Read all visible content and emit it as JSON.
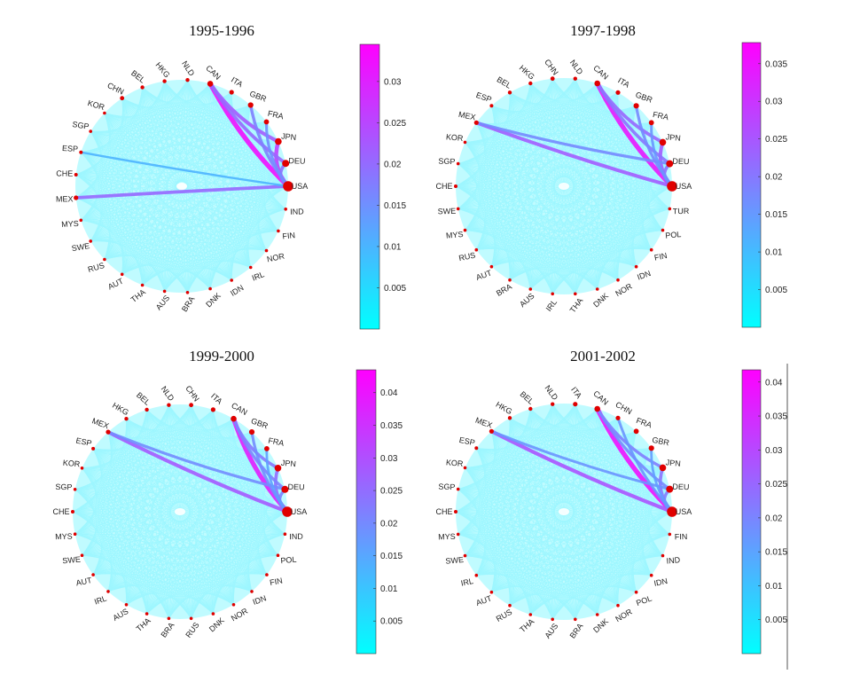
{
  "colors": {
    "low": "#00ffff",
    "high": "#ff00ff",
    "node": "#e00000",
    "background_web": "#4ff0ff"
  },
  "panels": [
    {
      "title": "1995-1996",
      "nodes": [
        "USA",
        "IND",
        "FIN",
        "NOR",
        "IRL",
        "IDN",
        "DNK",
        "BRA",
        "AUS",
        "THA",
        "AUT",
        "RUS",
        "SWE",
        "MYS",
        "MEX",
        "CHE",
        "ESP",
        "SGP",
        "KOR",
        "CHN",
        "BEL",
        "HKG",
        "NLD",
        "CAN",
        "ITA",
        "GBR",
        "FRA",
        "JPN",
        "DEU"
      ],
      "node_strength": [
        1,
        0.1,
        0.1,
        0.1,
        0.1,
        0.1,
        0.1,
        0.1,
        0.1,
        0.1,
        0.1,
        0.1,
        0.1,
        0.1,
        0.3,
        0.15,
        0.15,
        0.1,
        0.1,
        0.25,
        0.2,
        0.2,
        0.2,
        0.45,
        0.3,
        0.4,
        0.35,
        0.55,
        0.6
      ],
      "strong_edges": [
        {
          "from": "USA",
          "to": "CAN",
          "weight": 0.034
        },
        {
          "from": "USA",
          "to": "MEX",
          "weight": 0.02
        },
        {
          "from": "USA",
          "to": "JPN",
          "weight": 0.026
        },
        {
          "from": "USA",
          "to": "DEU",
          "weight": 0.018
        },
        {
          "from": "CAN",
          "to": "JPN",
          "weight": 0.022
        },
        {
          "from": "CAN",
          "to": "DEU",
          "weight": 0.02
        },
        {
          "from": "USA",
          "to": "GBR",
          "weight": 0.016
        },
        {
          "from": "USA",
          "to": "FRA",
          "weight": 0.014
        },
        {
          "from": "USA",
          "to": "ESP",
          "weight": 0.008
        }
      ],
      "colorbar": {
        "ticks": [
          0.005,
          0.01,
          0.015,
          0.02,
          0.025,
          0.03
        ],
        "tick_labels": [
          "0.005",
          "0.01",
          "0.015",
          "0.02",
          "0.025",
          "0.03"
        ],
        "max": 0.0345
      }
    },
    {
      "title": "1997-1998",
      "nodes": [
        "USA",
        "TUR",
        "POL",
        "FIN",
        "IDN",
        "NOR",
        "DNK",
        "THA",
        "IRL",
        "AUS",
        "BRA",
        "AUT",
        "RUS",
        "MYS",
        "SWE",
        "CHE",
        "SGP",
        "KOR",
        "MEX",
        "ESP",
        "BEL",
        "HKG",
        "CHN",
        "NLD",
        "CAN",
        "ITA",
        "GBR",
        "FRA",
        "JPN",
        "DEU"
      ],
      "node_strength": [
        1,
        0.1,
        0.1,
        0.1,
        0.1,
        0.1,
        0.1,
        0.1,
        0.1,
        0.1,
        0.1,
        0.1,
        0.1,
        0.1,
        0.1,
        0.15,
        0.1,
        0.1,
        0.3,
        0.15,
        0.2,
        0.2,
        0.25,
        0.2,
        0.45,
        0.3,
        0.4,
        0.35,
        0.55,
        0.6
      ],
      "strong_edges": [
        {
          "from": "USA",
          "to": "CAN",
          "weight": 0.036
        },
        {
          "from": "USA",
          "to": "MEX",
          "weight": 0.024
        },
        {
          "from": "USA",
          "to": "JPN",
          "weight": 0.024
        },
        {
          "from": "USA",
          "to": "DEU",
          "weight": 0.02
        },
        {
          "from": "CAN",
          "to": "JPN",
          "weight": 0.022
        },
        {
          "from": "CAN",
          "to": "DEU",
          "weight": 0.02
        },
        {
          "from": "MEX",
          "to": "DEU",
          "weight": 0.016
        },
        {
          "from": "USA",
          "to": "GBR",
          "weight": 0.016
        },
        {
          "from": "USA",
          "to": "FRA",
          "weight": 0.014
        }
      ],
      "colorbar": {
        "ticks": [
          0.005,
          0.01,
          0.015,
          0.02,
          0.025,
          0.03,
          0.035
        ],
        "tick_labels": [
          "0.005",
          "0.01",
          "0.015",
          "0.02",
          "0.025",
          "0.03",
          "0.035"
        ],
        "max": 0.0378
      }
    },
    {
      "title": "1999-2000",
      "nodes": [
        "USA",
        "IND",
        "POL",
        "FIN",
        "IDN",
        "NOR",
        "DNK",
        "RUS",
        "BRA",
        "THA",
        "AUS",
        "IRL",
        "AUT",
        "SWE",
        "MYS",
        "CHE",
        "SGP",
        "KOR",
        "ESP",
        "MEX",
        "HKG",
        "BEL",
        "NLD",
        "CHN",
        "ITA",
        "CAN",
        "GBR",
        "FRA",
        "JPN",
        "DEU"
      ],
      "node_strength": [
        1,
        0.1,
        0.1,
        0.1,
        0.1,
        0.1,
        0.1,
        0.1,
        0.1,
        0.1,
        0.1,
        0.1,
        0.1,
        0.1,
        0.1,
        0.15,
        0.1,
        0.1,
        0.15,
        0.3,
        0.2,
        0.2,
        0.2,
        0.25,
        0.3,
        0.45,
        0.4,
        0.35,
        0.55,
        0.6
      ],
      "strong_edges": [
        {
          "from": "USA",
          "to": "CAN",
          "weight": 0.04
        },
        {
          "from": "USA",
          "to": "MEX",
          "weight": 0.028
        },
        {
          "from": "USA",
          "to": "JPN",
          "weight": 0.024
        },
        {
          "from": "USA",
          "to": "DEU",
          "weight": 0.02
        },
        {
          "from": "CAN",
          "to": "JPN",
          "weight": 0.022
        },
        {
          "from": "CAN",
          "to": "DEU",
          "weight": 0.02
        },
        {
          "from": "MEX",
          "to": "DEU",
          "weight": 0.018
        },
        {
          "from": "USA",
          "to": "GBR",
          "weight": 0.018
        },
        {
          "from": "USA",
          "to": "FRA",
          "weight": 0.014
        }
      ],
      "colorbar": {
        "ticks": [
          0.005,
          0.01,
          0.015,
          0.02,
          0.025,
          0.03,
          0.035,
          0.04
        ],
        "tick_labels": [
          "0.005",
          "0.01",
          "0.015",
          "0.02",
          "0.025",
          "0.03",
          "0.035",
          "0.04"
        ],
        "max": 0.0435
      }
    },
    {
      "title": "2001-2002",
      "nodes": [
        "USA",
        "FIN",
        "IND",
        "IDN",
        "POL",
        "NOR",
        "DNK",
        "BRA",
        "AUS",
        "THA",
        "RUS",
        "AUT",
        "IRL",
        "SWE",
        "MYS",
        "CHE",
        "SGP",
        "KOR",
        "ESP",
        "MEX",
        "HKG",
        "BEL",
        "NLD",
        "ITA",
        "CAN",
        "CHN",
        "FRA",
        "GBR",
        "JPN",
        "DEU"
      ],
      "node_strength": [
        1,
        0.1,
        0.1,
        0.1,
        0.1,
        0.1,
        0.1,
        0.1,
        0.1,
        0.1,
        0.1,
        0.1,
        0.1,
        0.1,
        0.1,
        0.15,
        0.1,
        0.1,
        0.15,
        0.3,
        0.2,
        0.2,
        0.2,
        0.3,
        0.45,
        0.3,
        0.35,
        0.4,
        0.55,
        0.6
      ],
      "strong_edges": [
        {
          "from": "USA",
          "to": "CAN",
          "weight": 0.041
        },
        {
          "from": "USA",
          "to": "MEX",
          "weight": 0.028
        },
        {
          "from": "USA",
          "to": "JPN",
          "weight": 0.022
        },
        {
          "from": "USA",
          "to": "DEU",
          "weight": 0.02
        },
        {
          "from": "CAN",
          "to": "JPN",
          "weight": 0.02
        },
        {
          "from": "CAN",
          "to": "DEU",
          "weight": 0.018
        },
        {
          "from": "MEX",
          "to": "DEU",
          "weight": 0.016
        },
        {
          "from": "USA",
          "to": "CHN",
          "weight": 0.016
        },
        {
          "from": "USA",
          "to": "GBR",
          "weight": 0.014
        }
      ],
      "colorbar": {
        "ticks": [
          0.005,
          0.01,
          0.015,
          0.02,
          0.025,
          0.03,
          0.035,
          0.04
        ],
        "tick_labels": [
          "0.005",
          "0.01",
          "0.015",
          "0.02",
          "0.025",
          "0.03",
          "0.035",
          "0.04"
        ],
        "max": 0.0418
      }
    }
  ]
}
